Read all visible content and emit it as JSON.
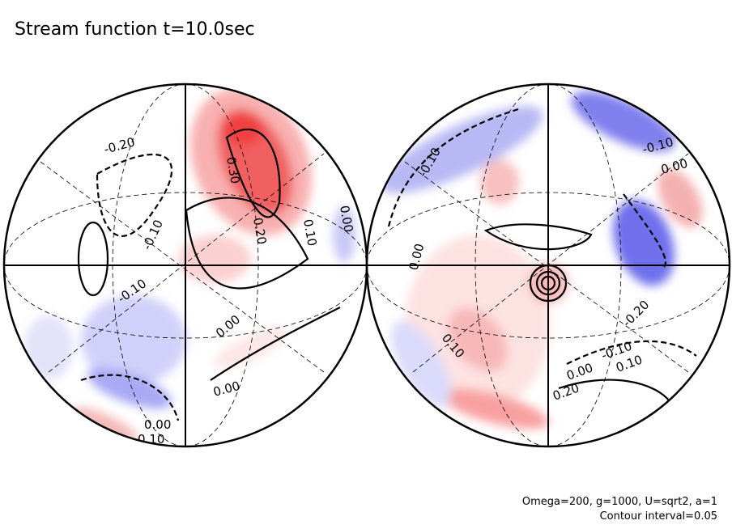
{
  "chart_data": {
    "type": "heatmap",
    "subtype": "contour-on-sphere (two hemispheres)",
    "title": "Stream function t=10.0sec",
    "annotations": [
      "Omega=200, g=1000, U=sqrt2, a=1",
      "Contour interval=0.05"
    ],
    "contour_interval": 0.05,
    "colors": {
      "positive": "#f04040",
      "negative": "#4040f0",
      "zero": "#ffffff"
    },
    "hemispheres": [
      {
        "name": "left",
        "contour_labels": [
          "-0.20",
          "-0.10",
          "0.30",
          "0.20",
          "0.10",
          "0.00",
          "-0.10",
          "0.00",
          "0.00",
          "0.00",
          "0.10"
        ],
        "approx_range": [
          -0.25,
          0.35
        ]
      },
      {
        "name": "right",
        "contour_labels": [
          "-0.10",
          "0.00",
          "-0.10",
          "0.00",
          "0.10",
          "-0.20",
          "-0.10",
          "0.00",
          "0.10",
          "0.20"
        ],
        "approx_range": [
          -0.25,
          0.25
        ]
      }
    ]
  }
}
